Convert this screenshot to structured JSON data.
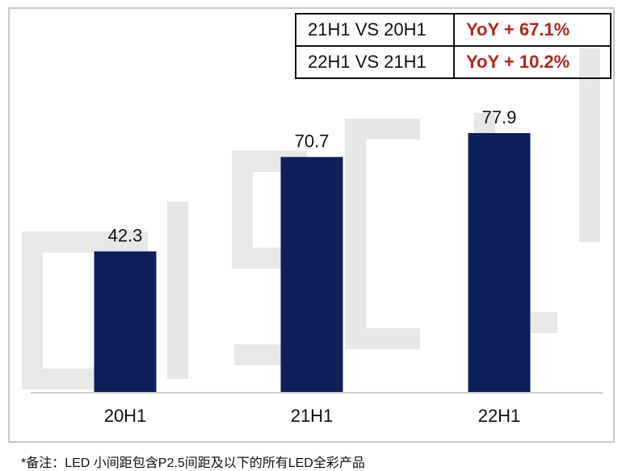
{
  "chart_data": {
    "type": "bar",
    "categories": [
      "20H1",
      "21H1",
      "22H1"
    ],
    "values": [
      42.3,
      70.7,
      77.9
    ],
    "title": "",
    "xlabel": "",
    "ylabel": "",
    "ylim": [
      0,
      80
    ],
    "grid": false,
    "bar_color": "#0e1f5b",
    "yoy_table": [
      {
        "label": "21H1 VS 20H1",
        "value": "YoY + 67.1%"
      },
      {
        "label": "22H1 VS 21H1",
        "value": "YoY + 10.2%"
      }
    ],
    "yoy_color": "#b0281c"
  },
  "footnote": "*备注：LED 小间距包含P2.5间距及以下的所有LED全彩产品"
}
